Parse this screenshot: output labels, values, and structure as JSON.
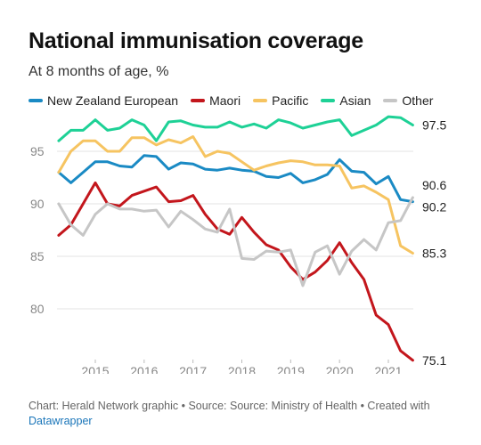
{
  "title": "National immunisation coverage",
  "subtitle": "At 8 months of age, %",
  "footer": {
    "text": "Chart: Herald Network graphic • Source: Source: Ministry of Health • Created with",
    "link": "Datawrapper"
  },
  "chart_data": {
    "type": "line",
    "title": "National immunisation coverage",
    "subtitle": "At 8 months of age, %",
    "xlabel": "",
    "ylabel": "",
    "xlim": [
      2014.25,
      2021.6
    ],
    "ylim": [
      74.5,
      99.5
    ],
    "grid": true,
    "legend_position": "top",
    "y_ticks": [
      80,
      85,
      90,
      95
    ],
    "x_ticks": [
      2015,
      2016,
      2017,
      2018,
      2019,
      2020,
      2021
    ],
    "x_tick_labels": [
      "2015",
      "2016",
      "2017",
      "2018",
      "2019",
      "2020",
      "2021"
    ],
    "x": [
      2014.25,
      2014.5,
      2014.75,
      2015.0,
      2015.25,
      2015.5,
      2015.75,
      2016.0,
      2016.25,
      2016.5,
      2016.75,
      2017.0,
      2017.25,
      2017.5,
      2017.75,
      2018.0,
      2018.25,
      2018.5,
      2018.75,
      2019.0,
      2019.25,
      2019.5,
      2019.75,
      2020.0,
      2020.25,
      2020.5,
      2020.75,
      2021.0,
      2021.25,
      2021.5
    ],
    "series": [
      {
        "name": "New Zealand European",
        "color": "#1a8ac4",
        "end_label": "90.2",
        "values": [
          93.0,
          92.0,
          93.0,
          94.0,
          94.0,
          93.6,
          93.5,
          94.6,
          94.5,
          93.3,
          93.9,
          93.8,
          93.3,
          93.2,
          93.4,
          93.2,
          93.1,
          92.6,
          92.5,
          92.9,
          92.0,
          92.3,
          92.8,
          94.2,
          93.1,
          93.0,
          91.9,
          92.6,
          90.4,
          90.2
        ]
      },
      {
        "name": "Maori",
        "color": "#c3161c",
        "end_label": "75.1",
        "values": [
          87.0,
          88.0,
          90.0,
          92.0,
          90.0,
          89.8,
          90.8,
          91.2,
          91.6,
          90.2,
          90.3,
          90.8,
          89.0,
          87.6,
          87.1,
          88.7,
          87.3,
          86.1,
          85.6,
          84.0,
          82.8,
          83.5,
          84.6,
          86.3,
          84.4,
          82.8,
          79.4,
          78.5,
          76.0,
          75.1
        ]
      },
      {
        "name": "Pacific",
        "color": "#f6c461",
        "end_label": "85.3",
        "values": [
          93.0,
          95.0,
          96.0,
          96.0,
          95.0,
          95.0,
          96.3,
          96.3,
          95.6,
          96.1,
          95.8,
          96.4,
          94.5,
          95.0,
          94.8,
          94.0,
          93.2,
          93.6,
          93.9,
          94.1,
          94.0,
          93.7,
          93.7,
          93.6,
          91.5,
          91.7,
          91.1,
          90.4,
          86.0,
          85.3
        ]
      },
      {
        "name": "Asian",
        "color": "#1ed196",
        "end_label": "97.5",
        "values": [
          96.0,
          97.0,
          97.0,
          98.0,
          97.0,
          97.2,
          98.0,
          97.5,
          96.0,
          97.8,
          97.9,
          97.5,
          97.3,
          97.3,
          97.8,
          97.3,
          97.6,
          97.2,
          98.0,
          97.7,
          97.2,
          97.5,
          97.8,
          98.0,
          96.5,
          97.0,
          97.5,
          98.3,
          98.2,
          97.5
        ]
      },
      {
        "name": "Other",
        "color": "#c6c6c6",
        "end_label": "90.6",
        "values": [
          90.0,
          88.0,
          87.0,
          89.0,
          90.0,
          89.5,
          89.5,
          89.3,
          89.4,
          87.8,
          89.3,
          88.5,
          87.6,
          87.3,
          89.5,
          84.8,
          84.7,
          85.5,
          85.4,
          85.6,
          82.2,
          85.4,
          86.0,
          83.3,
          85.5,
          86.6,
          85.6,
          88.2,
          88.4,
          90.6
        ]
      }
    ]
  }
}
